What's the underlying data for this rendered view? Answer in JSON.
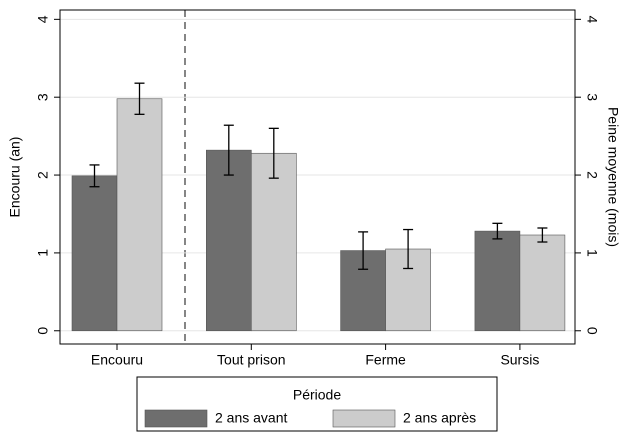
{
  "chart_data": {
    "type": "bar",
    "categories": [
      "Encouru",
      "Tout prison",
      "Ferme",
      "Sursis"
    ],
    "series": [
      {
        "name": "2 ans avant",
        "color": "#6e6e6e",
        "values": [
          1.99,
          2.32,
          1.03,
          1.28
        ],
        "errors": [
          0.14,
          0.32,
          0.24,
          0.1
        ]
      },
      {
        "name": "2 ans après",
        "color": "#cccccc",
        "values": [
          2.98,
          2.28,
          1.05,
          1.23
        ],
        "errors": [
          0.2,
          0.32,
          0.25,
          0.09
        ]
      }
    ],
    "y_label": "Encouru (an)",
    "y2_label": "Peine moyenne (mois)",
    "ylim": [
      -0.17,
      4.12
    ],
    "yticks": [
      0,
      1,
      2,
      3,
      4
    ],
    "y2lim": [
      -0.17,
      4.12
    ],
    "y2ticks": [
      0,
      1,
      2,
      3,
      4
    ],
    "grid": true,
    "legend_title": "Période",
    "legend_position": "bottom"
  }
}
